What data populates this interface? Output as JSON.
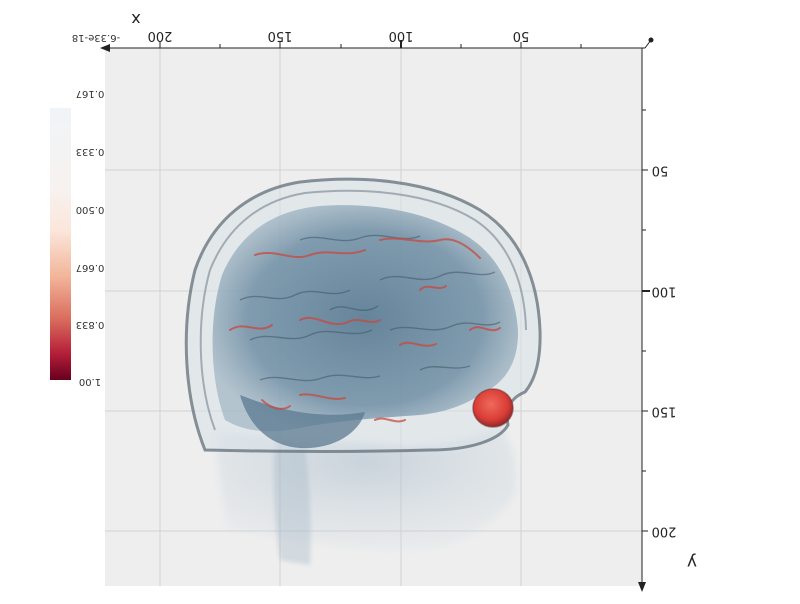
{
  "axes": {
    "x": {
      "label": "x",
      "ticks": [
        {
          "value": 50,
          "label": "50"
        },
        {
          "value": 100,
          "label": "100"
        },
        {
          "value": 150,
          "label": "150"
        },
        {
          "value": 200,
          "label": "200"
        }
      ]
    },
    "y": {
      "label": "y",
      "ticks": [
        {
          "value": 50,
          "label": "50"
        },
        {
          "value": 100,
          "label": "100"
        },
        {
          "value": 150,
          "label": "150"
        },
        {
          "value": 200,
          "label": "200"
        }
      ]
    }
  },
  "colorbar": {
    "min_label": "-6.33e-18",
    "labels": [
      "0.167",
      "0.333",
      "0.500",
      "0.667",
      "0.833",
      "1.00"
    ],
    "colors": [
      "#f0f4f8",
      "#f7f2ef",
      "#fbe6db",
      "#f2b59a",
      "#d96a5c",
      "#b5203a",
      "#67001f"
    ]
  },
  "colors": {
    "plot_background": "#eeeeee",
    "grid": "#d2d2d2",
    "axis": "#222222",
    "tissue_blue": "#7c98ad",
    "vessel_red": "#c8483e",
    "eye_red": "#d93c36"
  }
}
